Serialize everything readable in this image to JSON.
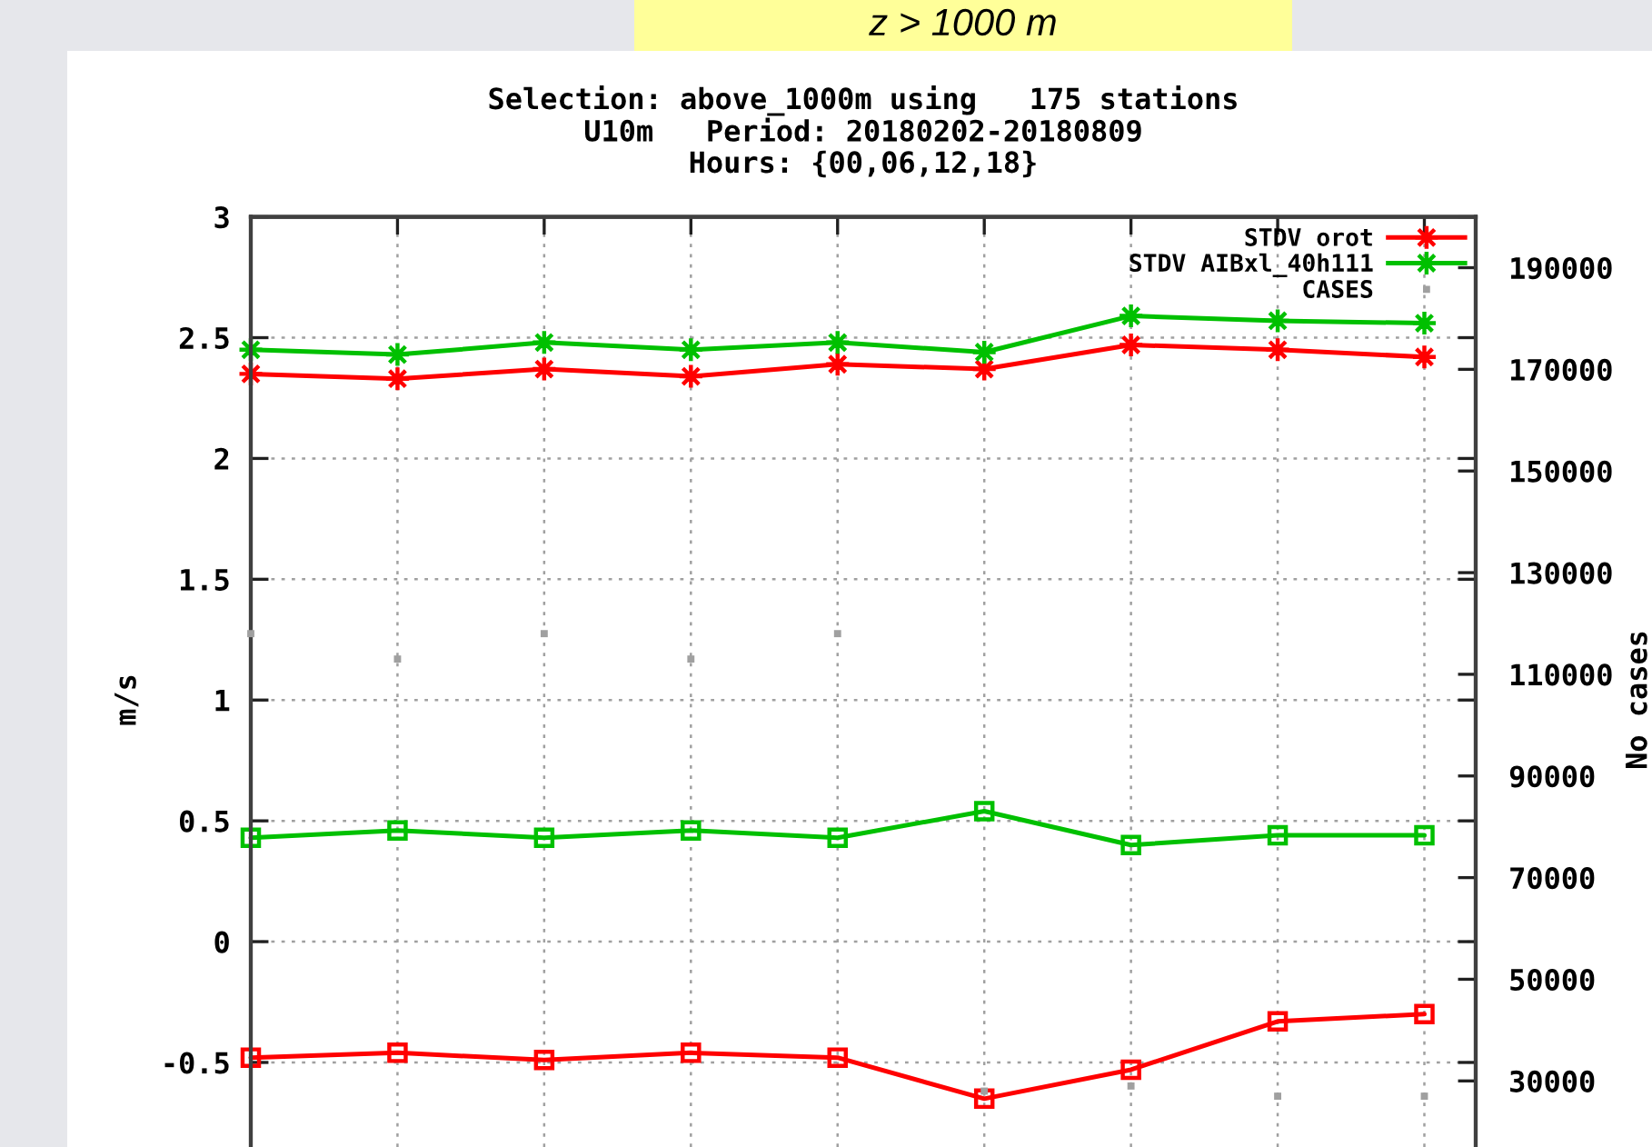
{
  "chart_data": {
    "type": "line",
    "title": "z > 1000 m",
    "subtitle": "Selection: above_1000m using   175 stations\nU10m   Period: 20180202-20180809\nHours: {00,06,12,18}",
    "ylabel": "m/s",
    "y2label": "No cases",
    "categories": [
      null,
      null,
      null,
      null,
      null,
      null,
      null,
      null,
      null
    ],
    "ylim": [
      -0.85,
      3
    ],
    "yticks": [
      -0.5,
      0,
      0.5,
      1,
      1.5,
      2,
      2.5,
      3
    ],
    "y2lim": [
      17000,
      200000
    ],
    "y2ticks": [
      30000,
      50000,
      70000,
      90000,
      110000,
      130000,
      150000,
      170000,
      190000
    ],
    "series": [
      {
        "name": "STDV orot",
        "color": "#ff0000",
        "marker": "star",
        "values": [
          2.35,
          2.33,
          2.37,
          2.34,
          2.39,
          2.37,
          2.47,
          2.45,
          2.42
        ]
      },
      {
        "name": "STDV AIBxl_40h111",
        "color": "#00c000",
        "marker": "star",
        "values": [
          2.45,
          2.43,
          2.48,
          2.45,
          2.48,
          2.44,
          2.59,
          2.57,
          2.56
        ]
      },
      {
        "name": "CASES",
        "type": "scatter",
        "axis": "y2",
        "color": "#a0a0a0",
        "marker": "square",
        "values": [
          118000,
          113000,
          118000,
          113000,
          118000,
          28000,
          29000,
          27000,
          27000
        ]
      },
      {
        "color": "#00c000",
        "marker": "square",
        "values": [
          0.43,
          0.46,
          0.43,
          0.46,
          0.43,
          0.54,
          0.4,
          0.44,
          0.44
        ]
      },
      {
        "color": "#ff0000",
        "marker": "square",
        "values": [
          -0.48,
          -0.46,
          -0.49,
          -0.46,
          -0.48,
          -0.65,
          -0.53,
          -0.33,
          -0.3
        ]
      }
    ],
    "grid": true,
    "legend": "top right",
    "line_style": "solid",
    "tick_labels": "y"
  }
}
